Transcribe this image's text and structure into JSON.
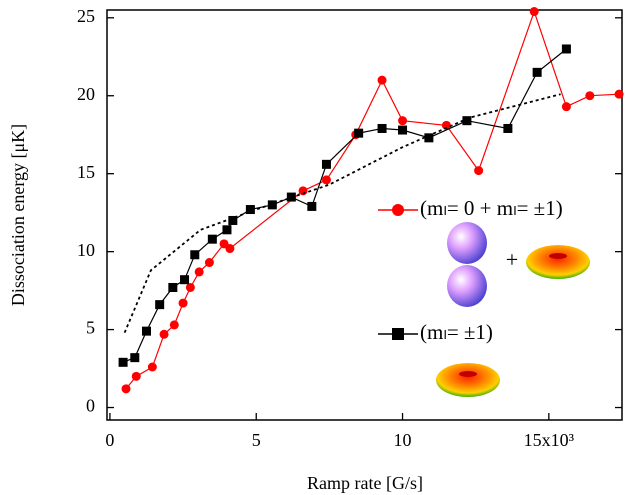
{
  "chart_data": {
    "type": "line",
    "xlabel": "Ramp rate [G/s]",
    "ylabel": "Dissociation energy [μK]",
    "xlim": [
      -0.1,
      17.5
    ],
    "ylim": [
      -0.8,
      25.5
    ],
    "xticks": [
      0,
      5,
      10,
      {
        "value": 15,
        "label": "15x10³"
      }
    ],
    "yticks": [
      0,
      5,
      10,
      15,
      20,
      25
    ],
    "grid": false,
    "annotations": [
      "+"
    ],
    "series": [
      {
        "name": "(mₗ= 0 + mₗ= ±1)",
        "color": "#ff0000",
        "marker": "circle",
        "dash": false,
        "x": [
          0.55,
          0.9,
          1.45,
          1.85,
          2.2,
          2.5,
          2.75,
          3.05,
          3.4,
          3.9,
          4.1,
          6.6,
          7.4,
          8.4,
          9.3,
          10.0,
          11.5,
          12.6,
          14.5,
          15.6,
          16.4,
          17.4
        ],
        "values": [
          1.2,
          2.0,
          2.6,
          4.7,
          5.3,
          6.7,
          7.7,
          8.7,
          9.3,
          10.5,
          10.2,
          13.9,
          14.6,
          17.5,
          21.0,
          18.4,
          18.1,
          15.2,
          25.4,
          19.3,
          20.0,
          20.1
        ]
      },
      {
        "name": "(mₗ= ±1)",
        "color": "#000000",
        "marker": "square",
        "dash": false,
        "x": [
          0.45,
          0.85,
          1.25,
          1.7,
          2.15,
          2.55,
          2.9,
          3.5,
          4.0,
          4.2,
          4.8,
          5.55,
          6.2,
          6.9,
          7.4,
          8.5,
          9.3,
          10.0,
          10.9,
          12.2,
          13.6,
          14.6,
          15.6
        ],
        "values": [
          2.9,
          3.2,
          4.9,
          6.6,
          7.7,
          8.2,
          9.8,
          10.8,
          11.4,
          12.0,
          12.7,
          13.0,
          13.5,
          12.9,
          15.6,
          17.6,
          17.9,
          17.8,
          17.3,
          18.4,
          17.9,
          21.5,
          23.0
        ]
      },
      {
        "color": "#000000",
        "marker": null,
        "dash": true,
        "x": [
          0.5,
          1.4,
          3.1,
          5.0,
          7.5,
          10.0,
          12.3,
          15.4
        ],
        "values": [
          4.8,
          8.8,
          11.4,
          12.7,
          14.3,
          16.7,
          18.6,
          20.1
        ]
      }
    ]
  }
}
